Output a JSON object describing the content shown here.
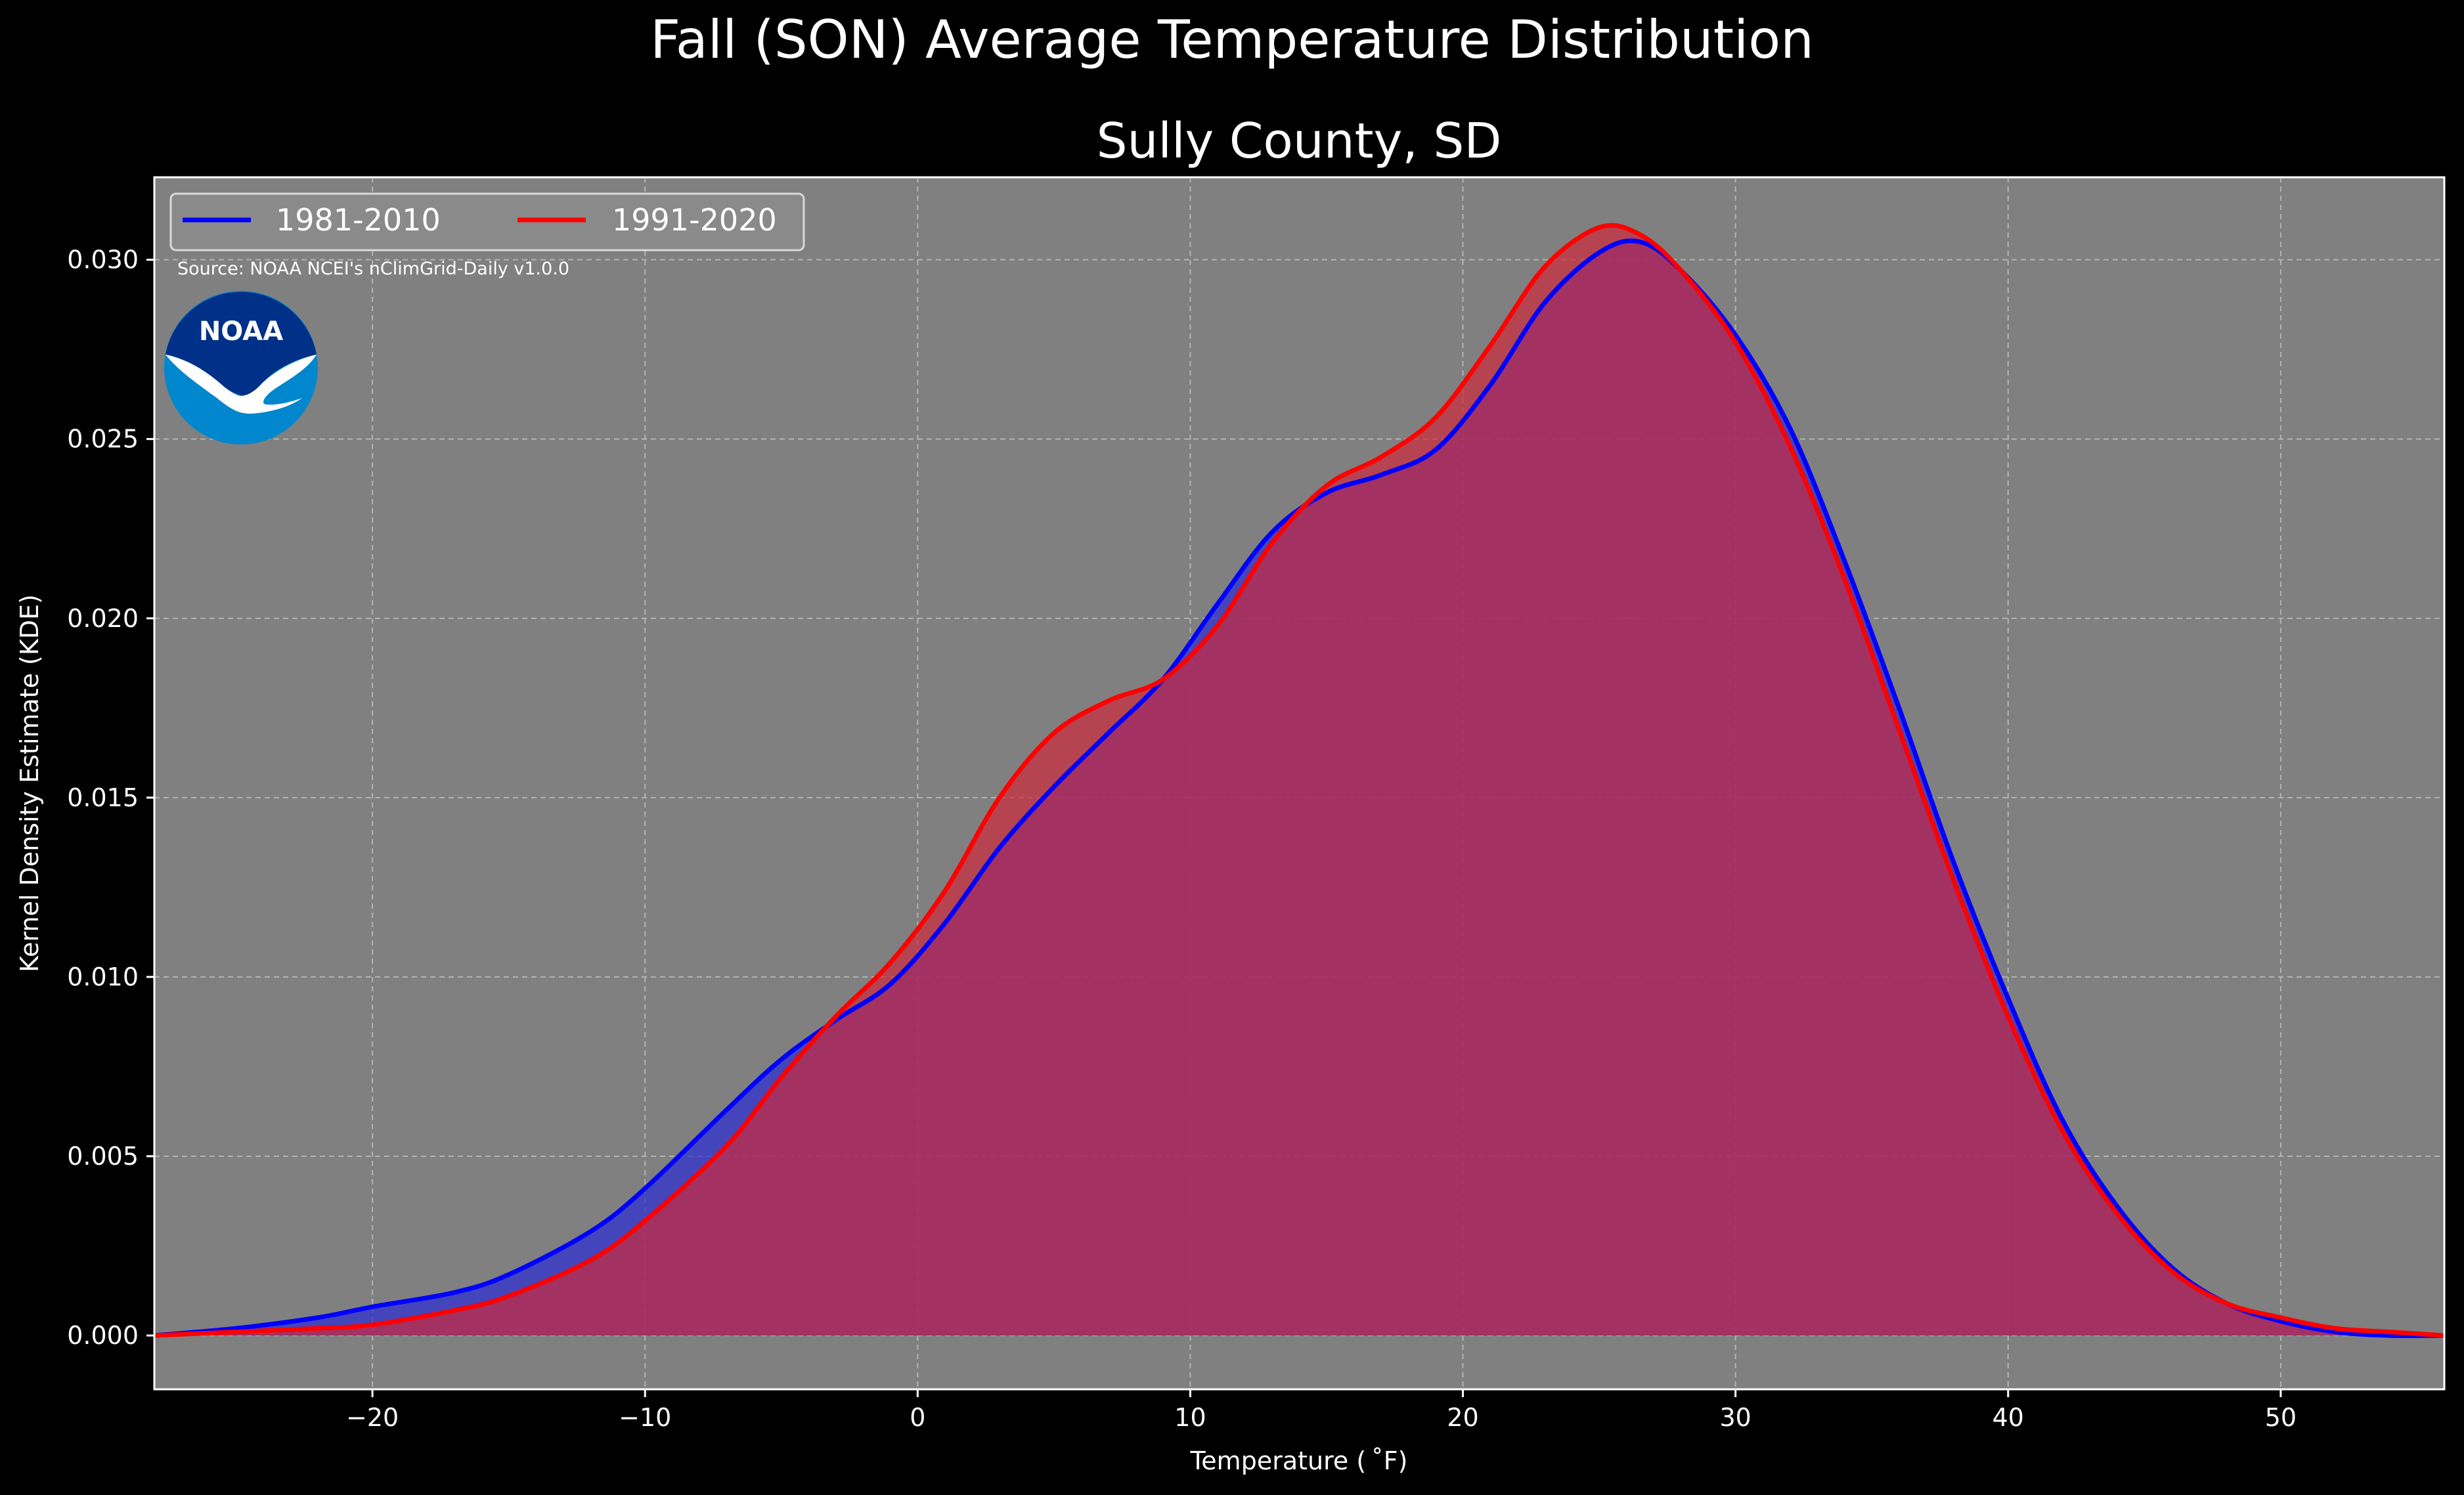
{
  "chart_data": {
    "type": "area",
    "suptitle": "Fall (SON) Average Temperature Distribution",
    "title": "Sully County, SD",
    "xlabel": "Temperature ($^\\circ$F)",
    "xlabel_display": "Temperature ( ˚F)",
    "ylabel": "Kernel Density Estimate (KDE)",
    "xlim": [
      -28,
      56
    ],
    "ylim": [
      -0.0015,
      0.0323
    ],
    "xticks": [
      -20,
      -10,
      0,
      10,
      20,
      30,
      40,
      50
    ],
    "xtick_labels": [
      "−20",
      "−10",
      "0",
      "10",
      "20",
      "30",
      "40",
      "50"
    ],
    "yticks": [
      0.0,
      0.005,
      0.01,
      0.015,
      0.02,
      0.025,
      0.03
    ],
    "ytick_labels": [
      "0.000",
      "0.005",
      "0.010",
      "0.015",
      "0.020",
      "0.025",
      "0.030"
    ],
    "grid": true,
    "legend_position": "top-left",
    "source_note": "Source: NOAA NCEI's nClimGrid-Daily v1.0.0",
    "logo_text": "NOAA",
    "series": [
      {
        "name": "1981-2010",
        "color": "#0000ff",
        "fill": "#2b2bd4",
        "x": [
          -28,
          -25,
          -22,
          -20,
          -17,
          -15,
          -12,
          -10,
          -7,
          -5,
          -3,
          -1,
          1,
          3,
          5,
          7,
          9,
          11,
          13,
          15,
          17,
          19,
          21,
          23,
          25,
          26.5,
          28,
          30,
          32,
          34,
          36,
          38,
          40,
          42,
          44,
          46,
          48,
          50,
          52,
          54,
          56
        ],
        "y": [
          0.0,
          0.0002,
          0.0005,
          0.0008,
          0.0012,
          0.0017,
          0.0029,
          0.0041,
          0.0063,
          0.0077,
          0.0088,
          0.0098,
          0.0115,
          0.0136,
          0.0153,
          0.0168,
          0.0183,
          0.0204,
          0.0224,
          0.0235,
          0.024,
          0.0247,
          0.0265,
          0.0288,
          0.0302,
          0.0305,
          0.0297,
          0.0279,
          0.0253,
          0.0216,
          0.0175,
          0.0132,
          0.0094,
          0.006,
          0.0036,
          0.0019,
          0.0009,
          0.0004,
          0.0001,
          0.0,
          0.0
        ]
      },
      {
        "name": "1991-2020",
        "color": "#ff0000",
        "fill": "#cc2a3c",
        "x": [
          -28,
          -25,
          -22,
          -20,
          -17,
          -15,
          -12,
          -10,
          -7,
          -5,
          -3,
          -1,
          1,
          3,
          5,
          7,
          9,
          11,
          13,
          15,
          17,
          19,
          21,
          23,
          25,
          26.5,
          28,
          30,
          32,
          34,
          36,
          38,
          40,
          42,
          44,
          46,
          48,
          50,
          52,
          54,
          56
        ],
        "y": [
          0.0,
          0.0001,
          0.0002,
          0.0003,
          0.0007,
          0.0011,
          0.0021,
          0.0032,
          0.0053,
          0.0072,
          0.0089,
          0.0104,
          0.0124,
          0.015,
          0.0168,
          0.0177,
          0.0183,
          0.0198,
          0.0221,
          0.0237,
          0.0245,
          0.0256,
          0.0276,
          0.0298,
          0.0309,
          0.0307,
          0.0297,
          0.0277,
          0.0248,
          0.0211,
          0.0169,
          0.0127,
          0.0089,
          0.0057,
          0.0034,
          0.0018,
          0.0009,
          0.0005,
          0.0002,
          0.0001,
          0.0
        ]
      }
    ]
  }
}
